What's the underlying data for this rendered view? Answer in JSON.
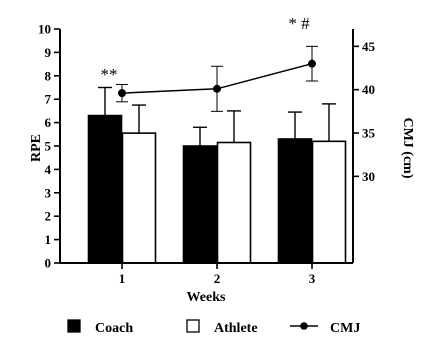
{
  "chart_data": {
    "type": "bar",
    "categories": [
      "1",
      "2",
      "3"
    ],
    "xlabel": "Weeks",
    "ylabel": "RPE",
    "ylim": [
      0,
      10
    ],
    "yticks": [
      "0",
      "1",
      "2",
      "3",
      "4",
      "5",
      "6",
      "7",
      "8",
      "9",
      "10"
    ],
    "y2label": "CMJ (cm)",
    "y2lim": [
      20,
      47
    ],
    "y2ticks": [
      "30",
      "35",
      "40",
      "45"
    ],
    "series": [
      {
        "name": "Coach",
        "type": "bar",
        "color": "#000000",
        "values": [
          6.3,
          5.0,
          5.3
        ],
        "errors": [
          1.2,
          0.8,
          1.15
        ]
      },
      {
        "name": "Athlete",
        "type": "bar",
        "color": "#ffffff",
        "values": [
          5.55,
          5.15,
          5.2
        ],
        "errors": [
          1.2,
          1.35,
          1.6
        ]
      },
      {
        "name": "CMJ",
        "type": "line",
        "axis": "right",
        "color": "#000000",
        "values": [
          39.6,
          40.1,
          43.0
        ],
        "errors": [
          1.0,
          2.6,
          2.0
        ]
      }
    ],
    "annotations": [
      {
        "text": "**",
        "category": "1"
      },
      {
        "text": "* #",
        "category": "3"
      }
    ],
    "legend_position": "bottom",
    "grid": false
  }
}
